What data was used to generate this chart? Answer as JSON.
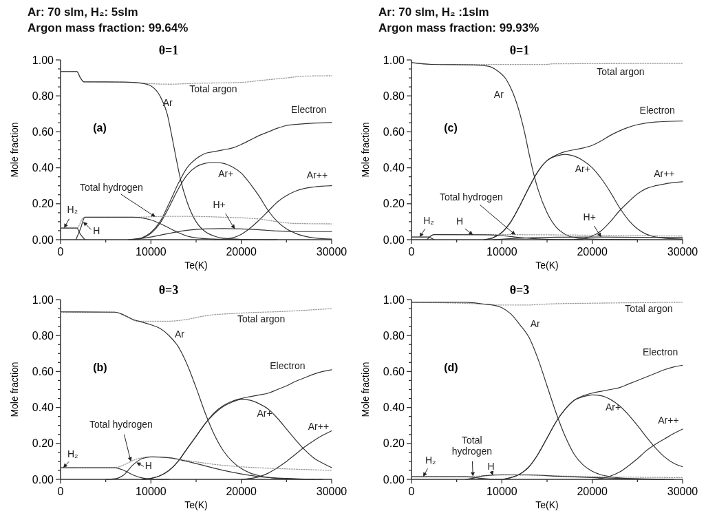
{
  "chart_data": [
    {
      "type": "line",
      "title": "θ=1",
      "subtitle": "Ar: 70 slm, H₂: 5slm\nArgon mass fraction: 99.64%",
      "xlabel": "Te(K)",
      "ylabel": "Mole fraction",
      "xlim": [
        0,
        30000
      ],
      "ylim": [
        0,
        1
      ],
      "xticks": [
        0,
        {
          "value": 5000,
          "label": null
        },
        10000,
        {
          "value": 15000,
          "label": null
        },
        20000,
        {
          "value": 25000,
          "label": null
        },
        30000
      ],
      "yticks": [
        {
          "value": 0,
          "label": "0.00"
        },
        {
          "value": 0.05,
          "label": null
        },
        {
          "value": 0.1,
          "label": null
        },
        {
          "value": 0.15,
          "label": null
        },
        {
          "value": 0.2,
          "label": "0.20"
        },
        {
          "value": 0.25,
          "label": null
        },
        {
          "value": 0.3,
          "label": null
        },
        {
          "value": 0.35,
          "label": null
        },
        {
          "value": 0.4,
          "label": "0.40"
        },
        {
          "value": 0.45,
          "label": null
        },
        {
          "value": 0.5,
          "label": null
        },
        {
          "value": 0.55,
          "label": null
        },
        {
          "value": 0.6,
          "label": "0.60"
        },
        {
          "value": 0.65,
          "label": null
        },
        {
          "value": 0.7,
          "label": null
        },
        {
          "value": 0.75,
          "label": null
        },
        {
          "value": 0.8,
          "label": "0.80"
        },
        {
          "value": 0.85,
          "label": null
        },
        {
          "value": 0.9,
          "label": null
        },
        {
          "value": 0.95,
          "label": null
        },
        {
          "value": 1,
          "label": "1.00"
        }
      ],
      "series": [
        {
          "name": "Total argon",
          "color": "#999999",
          "line_style": "dotted",
          "x": [
            0,
            1800,
            2200,
            2600,
            8000,
            10000,
            12000,
            15000,
            20000,
            22000,
            25000,
            27000,
            30000
          ],
          "values": [
            0.935,
            0.935,
            0.9,
            0.878,
            0.875,
            0.868,
            0.865,
            0.87,
            0.875,
            0.885,
            0.9,
            0.91,
            0.912
          ]
        },
        {
          "name": "Ar",
          "color": "#333333",
          "line_style": "solid",
          "x": [
            0,
            1800,
            2200,
            2600,
            7000,
            9000,
            10000,
            11000,
            11800,
            12300,
            12800,
            13300,
            14000,
            15000,
            16000,
            17000,
            18000,
            20000,
            24000
          ],
          "values": [
            0.935,
            0.935,
            0.9,
            0.878,
            0.877,
            0.87,
            0.855,
            0.8,
            0.7,
            0.58,
            0.45,
            0.33,
            0.21,
            0.1,
            0.045,
            0.02,
            0.008,
            0.002,
            0
          ]
        },
        {
          "name": "Electron",
          "color": "#333333",
          "line_style": "solid",
          "x": [
            8000,
            9000,
            10000,
            11000,
            12000,
            13000,
            14000,
            15000,
            16000,
            17000,
            18000,
            19000,
            20000,
            21000,
            22000,
            23000,
            24000,
            25000,
            27000,
            30000
          ],
          "values": [
            0,
            0.01,
            0.04,
            0.1,
            0.2,
            0.31,
            0.4,
            0.45,
            0.48,
            0.49,
            0.5,
            0.51,
            0.53,
            0.555,
            0.58,
            0.6,
            0.62,
            0.635,
            0.645,
            0.652
          ]
        },
        {
          "name": "Ar+",
          "color": "#333333",
          "line_style": "solid",
          "x": [
            8500,
            10000,
            11000,
            12000,
            13000,
            14000,
            15000,
            16000,
            17000,
            18000,
            19000,
            20000,
            21000,
            22000,
            23000,
            24000,
            25000,
            26000,
            28000,
            30000
          ],
          "values": [
            0,
            0.035,
            0.09,
            0.18,
            0.28,
            0.36,
            0.405,
            0.425,
            0.43,
            0.425,
            0.405,
            0.37,
            0.31,
            0.24,
            0.16,
            0.1,
            0.06,
            0.035,
            0.01,
            0.003
          ]
        },
        {
          "name": "Ar++",
          "color": "#333333",
          "line_style": "solid",
          "x": [
            17000,
            18000,
            19000,
            20000,
            21000,
            22000,
            23000,
            24000,
            25000,
            26000,
            27000,
            28000,
            30000
          ],
          "values": [
            0,
            0.003,
            0.01,
            0.03,
            0.065,
            0.11,
            0.16,
            0.21,
            0.245,
            0.27,
            0.285,
            0.293,
            0.3
          ]
        },
        {
          "name": "H+",
          "color": "#333333",
          "line_style": "solid",
          "x": [
            7500,
            10000,
            12000,
            14000,
            16000,
            18000,
            20000,
            22000,
            24000,
            26000,
            30000
          ],
          "values": [
            0,
            0.015,
            0.035,
            0.052,
            0.06,
            0.062,
            0.06,
            0.055,
            0.048,
            0.045,
            0.045
          ]
        },
        {
          "name": "Total hydrogen",
          "color": "#999999",
          "line_style": "dotted",
          "x": [
            0,
            1800,
            2600,
            8000,
            12000,
            14000,
            18000,
            22000,
            24000,
            26000,
            30000
          ],
          "values": [
            0.065,
            0.065,
            0.125,
            0.125,
            0.13,
            0.13,
            0.125,
            0.115,
            0.1,
            0.09,
            0.088
          ]
        },
        {
          "name": "H",
          "color": "#333333",
          "line_style": "solid",
          "x": [
            1700,
            2200,
            2700,
            8000,
            10000,
            11000,
            12000,
            13000,
            14000,
            15000,
            17000,
            21000
          ],
          "values": [
            0,
            0.06,
            0.125,
            0.125,
            0.11,
            0.09,
            0.065,
            0.04,
            0.02,
            0.01,
            0.003,
            0
          ]
        },
        {
          "name": "H₂",
          "color": "#333333",
          "line_style": "solid",
          "x": [
            0,
            1800,
            2200,
            2700
          ],
          "values": [
            0.065,
            0.065,
            0.03,
            0
          ]
        }
      ],
      "annotations": [
        "(a)"
      ]
    },
    {
      "type": "line",
      "title": "θ=1",
      "subtitle": "Ar: 70 slm, H₂ :1slm\nArgon mass fraction: 99.93%",
      "xlabel": "Te(K)",
      "ylabel": "Mole fraction",
      "xlim": [
        0,
        30000
      ],
      "ylim": [
        0,
        1
      ],
      "xticks": [
        0,
        {
          "value": 5000,
          "label": null
        },
        10000,
        {
          "value": 15000,
          "label": null
        },
        20000,
        {
          "value": 25000,
          "label": null
        },
        30000
      ],
      "yticks": [
        {
          "value": 0,
          "label": "0.00"
        },
        {
          "value": 0.05,
          "label": null
        },
        {
          "value": 0.1,
          "label": null
        },
        {
          "value": 0.15,
          "label": null
        },
        {
          "value": 0.2,
          "label": "0.20"
        },
        {
          "value": 0.25,
          "label": null
        },
        {
          "value": 0.3,
          "label": null
        },
        {
          "value": 0.35,
          "label": null
        },
        {
          "value": 0.4,
          "label": "0.40"
        },
        {
          "value": 0.45,
          "label": null
        },
        {
          "value": 0.5,
          "label": null
        },
        {
          "value": 0.55,
          "label": null
        },
        {
          "value": 0.6,
          "label": "0.60"
        },
        {
          "value": 0.65,
          "label": null
        },
        {
          "value": 0.7,
          "label": null
        },
        {
          "value": 0.75,
          "label": null
        },
        {
          "value": 0.8,
          "label": "0.80"
        },
        {
          "value": 0.85,
          "label": null
        },
        {
          "value": 0.9,
          "label": null
        },
        {
          "value": 0.95,
          "label": null
        },
        {
          "value": 1,
          "label": "1.00"
        }
      ],
      "series": [
        {
          "name": "Total argon",
          "color": "#999999",
          "line_style": "dotted",
          "x": [
            0,
            2200,
            8000,
            15000,
            15500,
            24000,
            30000
          ],
          "values": [
            0.985,
            0.975,
            0.975,
            0.975,
            0.978,
            0.98,
            0.98
          ]
        },
        {
          "name": "Ar",
          "color": "#333333",
          "line_style": "solid",
          "x": [
            0,
            2200,
            7000,
            8500,
            9500,
            10500,
            11200,
            12000,
            12500,
            13000,
            13500,
            14000,
            15000,
            16000,
            17000,
            18000,
            20000,
            25000
          ],
          "values": [
            0.985,
            0.975,
            0.972,
            0.965,
            0.94,
            0.89,
            0.82,
            0.7,
            0.6,
            0.48,
            0.37,
            0.28,
            0.15,
            0.07,
            0.03,
            0.012,
            0.003,
            0
          ]
        },
        {
          "name": "Electron",
          "color": "#333333",
          "line_style": "solid",
          "x": [
            8000,
            9000,
            10000,
            11000,
            12000,
            13000,
            14000,
            15000,
            16000,
            17000,
            18000,
            19000,
            20000,
            21000,
            22000,
            23000,
            24000,
            25000,
            27000,
            30000
          ],
          "values": [
            0,
            0.01,
            0.04,
            0.1,
            0.19,
            0.29,
            0.38,
            0.44,
            0.47,
            0.49,
            0.5,
            0.51,
            0.525,
            0.55,
            0.58,
            0.605,
            0.625,
            0.64,
            0.655,
            0.66
          ]
        },
        {
          "name": "Ar+",
          "color": "#333333",
          "line_style": "solid",
          "x": [
            8200,
            9000,
            10000,
            11000,
            12000,
            13000,
            14000,
            15000,
            16000,
            17000,
            18000,
            19000,
            20000,
            21000,
            22000,
            23000,
            24000,
            25000,
            26000,
            28000,
            30000
          ],
          "values": [
            0,
            0.01,
            0.04,
            0.1,
            0.19,
            0.29,
            0.38,
            0.44,
            0.465,
            0.475,
            0.465,
            0.44,
            0.4,
            0.34,
            0.265,
            0.18,
            0.11,
            0.06,
            0.03,
            0.008,
            0.003
          ]
        },
        {
          "name": "Ar++",
          "color": "#333333",
          "line_style": "solid",
          "x": [
            18000,
            19000,
            20000,
            21000,
            22000,
            23000,
            24000,
            25000,
            26000,
            27000,
            28000,
            30000
          ],
          "values": [
            0,
            0.005,
            0.02,
            0.05,
            0.1,
            0.16,
            0.21,
            0.255,
            0.285,
            0.3,
            0.31,
            0.322
          ]
        },
        {
          "name": "H+",
          "color": "#333333",
          "line_style": "solid",
          "x": [
            9000,
            12000,
            16000,
            20000,
            25000,
            30000
          ],
          "values": [
            0,
            0.008,
            0.014,
            0.015,
            0.013,
            0.012
          ]
        },
        {
          "name": "Total hydrogen",
          "color": "#999999",
          "line_style": "dotted",
          "x": [
            0,
            1800,
            2500,
            10000,
            15000,
            20000,
            25000,
            30000
          ],
          "values": [
            0.015,
            0.015,
            0.028,
            0.028,
            0.027,
            0.025,
            0.022,
            0.02
          ]
        },
        {
          "name": "H",
          "color": "#333333",
          "line_style": "solid",
          "x": [
            1700,
            2500,
            8000,
            10000,
            12000,
            14000,
            16000,
            19000
          ],
          "values": [
            0,
            0.028,
            0.027,
            0.022,
            0.012,
            0.004,
            0.001,
            0
          ]
        },
        {
          "name": "H₂",
          "color": "#333333",
          "line_style": "solid",
          "x": [
            0,
            1800,
            2500
          ],
          "values": [
            0.015,
            0.015,
            0
          ]
        }
      ],
      "annotations": [
        "(c)"
      ]
    },
    {
      "type": "line",
      "title": "θ=3",
      "xlabel": "Te(K)",
      "ylabel": "Mole fraction",
      "xlim": [
        0,
        30000
      ],
      "ylim": [
        0,
        1
      ],
      "xticks": [
        0,
        {
          "value": 5000,
          "label": null
        },
        10000,
        {
          "value": 15000,
          "label": null
        },
        20000,
        {
          "value": 25000,
          "label": null
        },
        30000
      ],
      "yticks": [
        {
          "value": 0,
          "label": "0.00"
        },
        {
          "value": 0.05,
          "label": null
        },
        {
          "value": 0.1,
          "label": null
        },
        {
          "value": 0.15,
          "label": null
        },
        {
          "value": 0.2,
          "label": "0.20"
        },
        {
          "value": 0.25,
          "label": null
        },
        {
          "value": 0.3,
          "label": null
        },
        {
          "value": 0.35,
          "label": null
        },
        {
          "value": 0.4,
          "label": "0.40"
        },
        {
          "value": 0.45,
          "label": null
        },
        {
          "value": 0.5,
          "label": null
        },
        {
          "value": 0.55,
          "label": null
        },
        {
          "value": 0.6,
          "label": "0.60"
        },
        {
          "value": 0.65,
          "label": null
        },
        {
          "value": 0.7,
          "label": null
        },
        {
          "value": 0.75,
          "label": null
        },
        {
          "value": 0.8,
          "label": "0.80"
        },
        {
          "value": 0.85,
          "label": null
        },
        {
          "value": 0.9,
          "label": null
        },
        {
          "value": 0.95,
          "label": null
        },
        {
          "value": 1,
          "label": "1.00"
        }
      ],
      "series": [
        {
          "name": "Total argon",
          "color": "#999999",
          "line_style": "dotted",
          "x": [
            0,
            6000,
            7500,
            8500,
            12000,
            14000,
            16000,
            20000,
            25000,
            30000
          ],
          "values": [
            0.93,
            0.93,
            0.9,
            0.88,
            0.88,
            0.89,
            0.91,
            0.925,
            0.935,
            0.95
          ]
        },
        {
          "name": "Ar",
          "color": "#333333",
          "line_style": "solid",
          "x": [
            0,
            6000,
            7000,
            8000,
            9000,
            10000,
            11000,
            12000,
            13000,
            14000,
            15000,
            16000,
            17000,
            18000,
            19000,
            20000,
            21000,
            22000,
            24000,
            26000,
            28000
          ],
          "values": [
            0.932,
            0.93,
            0.915,
            0.89,
            0.875,
            0.86,
            0.84,
            0.8,
            0.74,
            0.64,
            0.51,
            0.37,
            0.25,
            0.16,
            0.1,
            0.06,
            0.035,
            0.02,
            0.005,
            0.001,
            0
          ]
        },
        {
          "name": "Electron",
          "color": "#333333",
          "line_style": "solid",
          "x": [
            9000,
            10000,
            11000,
            12000,
            13000,
            14000,
            15000,
            16000,
            17000,
            18000,
            19000,
            20000,
            21000,
            22000,
            23000,
            24000,
            25000,
            26000,
            27000,
            28000,
            29000,
            30000
          ],
          "values": [
            0,
            0.005,
            0.02,
            0.05,
            0.1,
            0.17,
            0.24,
            0.31,
            0.37,
            0.41,
            0.435,
            0.45,
            0.46,
            0.47,
            0.48,
            0.5,
            0.52,
            0.545,
            0.565,
            0.585,
            0.6,
            0.61
          ]
        },
        {
          "name": "Ar+",
          "color": "#333333",
          "line_style": "solid",
          "x": [
            9200,
            10000,
            11000,
            12000,
            13000,
            14000,
            15000,
            16000,
            17000,
            18000,
            19000,
            20000,
            21000,
            22000,
            23000,
            24000,
            25000,
            26000,
            27000,
            28000,
            29000,
            30000
          ],
          "values": [
            0,
            0.005,
            0.02,
            0.05,
            0.1,
            0.17,
            0.24,
            0.31,
            0.365,
            0.405,
            0.43,
            0.445,
            0.44,
            0.42,
            0.39,
            0.34,
            0.28,
            0.22,
            0.165,
            0.12,
            0.09,
            0.065
          ]
        },
        {
          "name": "Ar++",
          "color": "#333333",
          "line_style": "solid",
          "x": [
            20000,
            21000,
            22000,
            23000,
            24000,
            25000,
            26000,
            27000,
            28000,
            29000,
            30000
          ],
          "values": [
            0,
            0.005,
            0.015,
            0.035,
            0.065,
            0.1,
            0.14,
            0.18,
            0.215,
            0.245,
            0.27
          ]
        },
        {
          "name": "Total hydrogen",
          "color": "#999999",
          "line_style": "dotted",
          "x": [
            0,
            6000,
            7000,
            8000,
            9000,
            10000,
            12000,
            14000,
            16000,
            18000,
            20000,
            24000,
            27000,
            30000
          ],
          "values": [
            0.065,
            0.065,
            0.08,
            0.105,
            0.12,
            0.125,
            0.12,
            0.105,
            0.09,
            0.078,
            0.07,
            0.06,
            0.055,
            0.05
          ]
        },
        {
          "name": "H",
          "color": "#333333",
          "line_style": "solid",
          "x": [
            5000,
            6000,
            7000,
            8000,
            9000,
            10000,
            12000,
            14000,
            16000,
            18000,
            20000,
            22000,
            24000,
            27000,
            29000
          ],
          "values": [
            0,
            0.003,
            0.025,
            0.08,
            0.115,
            0.125,
            0.12,
            0.1,
            0.075,
            0.05,
            0.03,
            0.015,
            0.007,
            0.002,
            0
          ]
        },
        {
          "name": "H₂",
          "color": "#333333",
          "line_style": "solid",
          "x": [
            0,
            6000,
            7000,
            8000,
            9000,
            10000,
            12000
          ],
          "values": [
            0.065,
            0.065,
            0.05,
            0.025,
            0.008,
            0.002,
            0
          ]
        }
      ],
      "annotations": [
        "(b)"
      ]
    },
    {
      "type": "line",
      "title": "θ=3",
      "xlabel": "Te(K)",
      "ylabel": "Mole fraction",
      "xlim": [
        0,
        30000
      ],
      "ylim": [
        0,
        1
      ],
      "xticks": [
        0,
        {
          "value": 5000,
          "label": null
        },
        10000,
        {
          "value": 15000,
          "label": null
        },
        20000,
        {
          "value": 25000,
          "label": null
        },
        30000
      ],
      "yticks": [
        {
          "value": 0,
          "label": "0.00"
        },
        {
          "value": 0.05,
          "label": null
        },
        {
          "value": 0.1,
          "label": null
        },
        {
          "value": 0.15,
          "label": null
        },
        {
          "value": 0.2,
          "label": "0.20"
        },
        {
          "value": 0.25,
          "label": null
        },
        {
          "value": 0.3,
          "label": null
        },
        {
          "value": 0.35,
          "label": null
        },
        {
          "value": 0.4,
          "label": "0.40"
        },
        {
          "value": 0.45,
          "label": null
        },
        {
          "value": 0.5,
          "label": null
        },
        {
          "value": 0.55,
          "label": null
        },
        {
          "value": 0.6,
          "label": "0.60"
        },
        {
          "value": 0.65,
          "label": null
        },
        {
          "value": 0.7,
          "label": null
        },
        {
          "value": 0.75,
          "label": null
        },
        {
          "value": 0.8,
          "label": "0.80"
        },
        {
          "value": 0.85,
          "label": null
        },
        {
          "value": 0.9,
          "label": null
        },
        {
          "value": 0.95,
          "label": null
        },
        {
          "value": 1,
          "label": "1.00"
        }
      ],
      "series": [
        {
          "name": "Total argon",
          "color": "#999999",
          "line_style": "dotted",
          "x": [
            0,
            8000,
            9000,
            13000,
            14000,
            16000,
            20000,
            30000
          ],
          "values": [
            0.985,
            0.975,
            0.97,
            0.97,
            0.973,
            0.977,
            0.98,
            0.985
          ]
        },
        {
          "name": "Ar",
          "color": "#333333",
          "line_style": "solid",
          "x": [
            0,
            6000,
            8000,
            9000,
            10000,
            11000,
            12000,
            13000,
            14000,
            15000,
            16000,
            17000,
            18000,
            19000,
            20000,
            21000,
            22000,
            24000,
            26000,
            28000
          ],
          "values": [
            0.985,
            0.985,
            0.975,
            0.97,
            0.955,
            0.92,
            0.86,
            0.79,
            0.67,
            0.52,
            0.37,
            0.24,
            0.14,
            0.08,
            0.045,
            0.025,
            0.015,
            0.004,
            0.001,
            0
          ]
        },
        {
          "name": "Electron",
          "color": "#333333",
          "line_style": "solid",
          "x": [
            10000,
            11000,
            12000,
            13000,
            14000,
            15000,
            16000,
            17000,
            18000,
            19000,
            20000,
            21000,
            22000,
            23000,
            24000,
            25000,
            26000,
            27000,
            28000,
            29000,
            30000
          ],
          "values": [
            0,
            0.01,
            0.03,
            0.07,
            0.14,
            0.23,
            0.32,
            0.39,
            0.44,
            0.465,
            0.48,
            0.49,
            0.5,
            0.51,
            0.53,
            0.55,
            0.57,
            0.59,
            0.61,
            0.625,
            0.635
          ]
        },
        {
          "name": "Ar+",
          "color": "#333333",
          "line_style": "solid",
          "x": [
            10200,
            11000,
            12000,
            13000,
            14000,
            15000,
            16000,
            17000,
            18000,
            19000,
            20000,
            21000,
            22000,
            23000,
            24000,
            25000,
            26000,
            27000,
            28000,
            29000,
            30000
          ],
          "values": [
            0,
            0.01,
            0.03,
            0.07,
            0.14,
            0.23,
            0.32,
            0.39,
            0.44,
            0.46,
            0.47,
            0.465,
            0.445,
            0.41,
            0.36,
            0.3,
            0.235,
            0.175,
            0.125,
            0.09,
            0.07
          ]
        },
        {
          "name": "Ar++",
          "color": "#333333",
          "line_style": "solid",
          "x": [
            20000,
            21000,
            22000,
            23000,
            24000,
            25000,
            26000,
            27000,
            28000,
            29000,
            30000
          ],
          "values": [
            0,
            0.005,
            0.018,
            0.04,
            0.075,
            0.115,
            0.16,
            0.195,
            0.225,
            0.255,
            0.28
          ]
        },
        {
          "name": "Total\nhydrogen",
          "color": "#999999",
          "line_style": "dotted",
          "x": [
            0,
            6000,
            8000,
            10000,
            14000,
            20000,
            30000
          ],
          "values": [
            0.015,
            0.015,
            0.02,
            0.025,
            0.022,
            0.015,
            0.01
          ]
        },
        {
          "name": "H",
          "color": "#333333",
          "line_style": "solid",
          "x": [
            6000,
            7000,
            8000,
            10000,
            13000,
            16000,
            20000,
            24000,
            29000
          ],
          "values": [
            0,
            0.008,
            0.02,
            0.025,
            0.025,
            0.018,
            0.01,
            0.004,
            0
          ]
        },
        {
          "name": "H₂",
          "color": "#333333",
          "line_style": "solid",
          "x": [
            0,
            6000,
            7000,
            8000,
            9000,
            10000
          ],
          "values": [
            0.015,
            0.015,
            0.01,
            0.004,
            0.001,
            0
          ]
        }
      ],
      "annotations": [
        "(d)"
      ]
    }
  ]
}
